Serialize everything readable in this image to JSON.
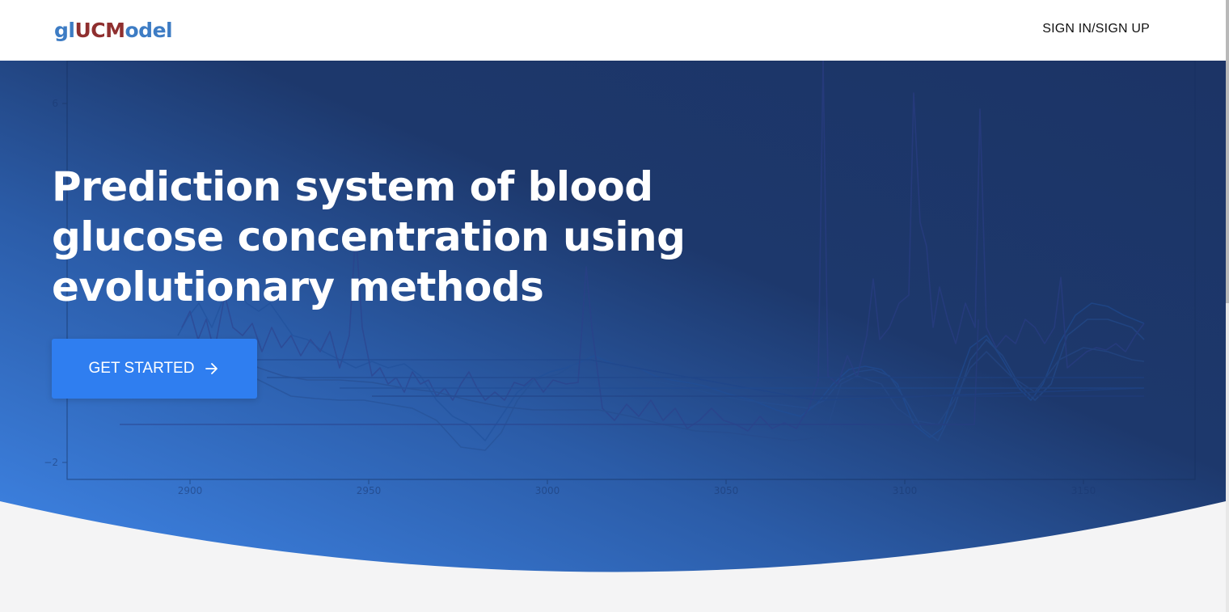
{
  "header": {
    "logo": {
      "part1": "gl",
      "part2": "UCM",
      "part3": "odel"
    },
    "signin_label": "SIGN IN/SIGN UP"
  },
  "hero": {
    "headline": "Prediction system of blood glucose concentration using evolutionary methods",
    "cta_label": "GET STARTED"
  },
  "background_chart": {
    "y_ticks": [
      "6",
      "−2"
    ],
    "x_ticks": [
      "2900",
      "2950",
      "3000",
      "3050",
      "3100",
      "3150"
    ]
  },
  "colors": {
    "header_bg": "#ffffff",
    "hero_gradient_start": "#3f86e8",
    "hero_gradient_end": "#1c3466",
    "cta_bg": "#2f7ef0",
    "logo_blue": "#3d7cc4",
    "logo_red": "#8f2f2f",
    "page_bg": "#f4f4f5"
  },
  "icons": {
    "cta_arrow": "arrow-right-icon"
  }
}
